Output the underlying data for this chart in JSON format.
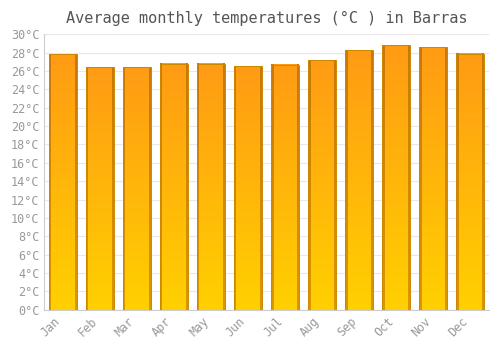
{
  "title": "Average monthly temperatures (°C ) in Barras",
  "months": [
    "Jan",
    "Feb",
    "Mar",
    "Apr",
    "May",
    "Jun",
    "Jul",
    "Aug",
    "Sep",
    "Oct",
    "Nov",
    "Dec"
  ],
  "values": [
    27.8,
    26.4,
    26.4,
    26.8,
    26.8,
    26.5,
    26.7,
    27.2,
    28.3,
    28.8,
    28.6,
    27.9
  ],
  "bar_color_bottom": "#FFD000",
  "bar_color_top": "#FFA020",
  "bar_edge_color": "#CC8800",
  "background_color": "#ffffff",
  "grid_color": "#e8e8e8",
  "tick_label_color": "#999999",
  "title_color": "#555555",
  "ylim": [
    0,
    30
  ],
  "ytick_step": 2,
  "title_fontsize": 11,
  "tick_fontsize": 8.5,
  "bar_width": 0.75
}
